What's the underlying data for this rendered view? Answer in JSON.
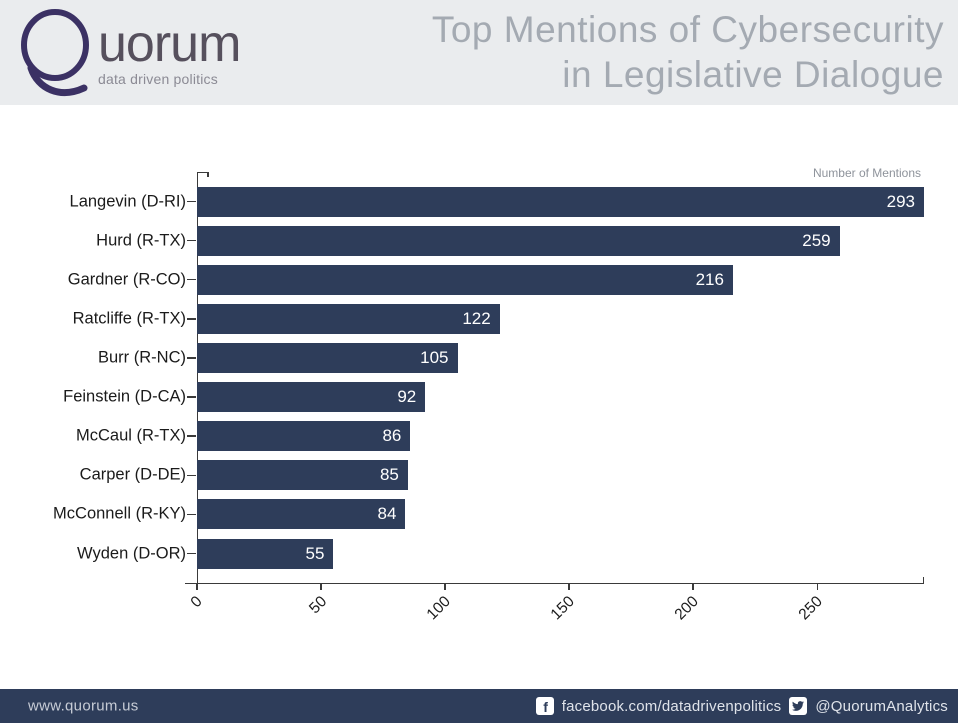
{
  "header": {
    "logo": {
      "wordmark": "uorum",
      "tagline": "data driven politics"
    },
    "title_line1": "Top Mentions of Cybersecurity",
    "title_line2": "in Legislative Dialogue"
  },
  "chart_data": {
    "type": "bar",
    "orientation": "horizontal",
    "title": "Top Mentions of Cybersecurity in Legislative Dialogue",
    "axis_label": "Number of Mentions",
    "categories": [
      "Langevin (D-RI)",
      "Hurd (R-TX)",
      "Gardner (R-CO)",
      "Ratcliffe (R-TX)",
      "Burr (R-NC)",
      "Feinstein (D-CA)",
      "McCaul (R-TX)",
      "Carper (D-DE)",
      "McConnell (R-KY)",
      "Wyden (D-OR)"
    ],
    "values": [
      293,
      259,
      216,
      122,
      105,
      92,
      86,
      85,
      84,
      55
    ],
    "x_ticks": [
      0,
      50,
      100,
      150,
      200,
      250
    ],
    "xlim": [
      0,
      293
    ],
    "grid": false,
    "bar_color": "#2e3d5a",
    "value_label_color": "#ffffff",
    "value_label_position": "inside-end",
    "legend": "none"
  },
  "footer": {
    "website": "www.quorum.us",
    "facebook_icon": "facebook-icon",
    "facebook": "facebook.com/datadrivenpolitics",
    "twitter_icon": "twitter-icon",
    "twitter_handle": "@QuorumAnalytics"
  },
  "colors": {
    "bar": "#2e3d5a",
    "footer_bg": "#2e3d5a",
    "header_bg": "#eaecee",
    "title_text": "#a4aab2",
    "logo_purple": "#3b3164",
    "logo_gray": "#56505d",
    "tagline_gray": "#8b8a94",
    "axis": "#3a3a3a",
    "label_text": "#1b1b1b",
    "units_label": "#8e939b",
    "footer_text": "#c7ccd6"
  }
}
